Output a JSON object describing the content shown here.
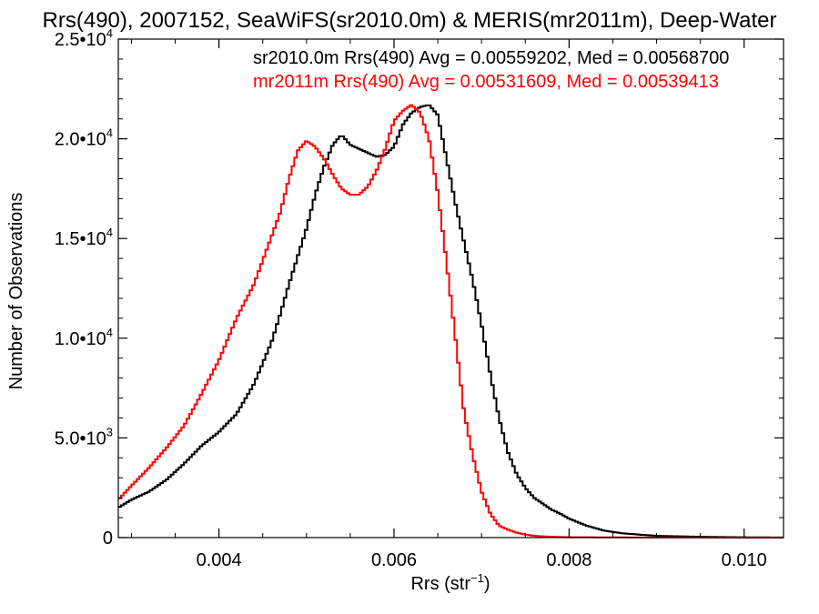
{
  "chart_data": {
    "type": "line",
    "title": "Rrs(490), 2007152, SeaWiFS(sr2010.0m) & MERIS(mr2011m), Deep-Water",
    "xlabel": "Rrs (str",
    "xlabel_sup": "−1",
    "xlabel_close": ")",
    "ylabel": "Number of Observations",
    "xlim": [
      0.00285,
      0.01045
    ],
    "ylim": [
      0,
      25000
    ],
    "x_ticks": [
      {
        "value": 0.004,
        "label": "0.004"
      },
      {
        "value": 0.006,
        "label": "0.006"
      },
      {
        "value": 0.008,
        "label": "0.008"
      },
      {
        "value": 0.01,
        "label": "0.010"
      }
    ],
    "y_ticks": [
      {
        "value": 0,
        "base": "0",
        "exp": ""
      },
      {
        "value": 5000,
        "base": "5.0•10",
        "exp": "3"
      },
      {
        "value": 10000,
        "base": "1.0•10",
        "exp": "4"
      },
      {
        "value": 15000,
        "base": "1.5•10",
        "exp": "4"
      },
      {
        "value": 20000,
        "base": "2.0•10",
        "exp": "4"
      },
      {
        "value": 25000,
        "base": "2.5•10",
        "exp": "4"
      }
    ],
    "grid": false,
    "legend_placement": "top-right",
    "series": [
      {
        "name": "sr2010.0m Rrs(490) Avg = 0.00559202, Med = 0.00568700",
        "color": "#000000",
        "x": [
          0.00285,
          0.003,
          0.0032,
          0.0034,
          0.0036,
          0.0038,
          0.004,
          0.0042,
          0.0044,
          0.0046,
          0.0047,
          0.0048,
          0.0049,
          0.005,
          0.0051,
          0.0052,
          0.0053,
          0.0054,
          0.0055,
          0.0056,
          0.0057,
          0.0058,
          0.0059,
          0.006,
          0.0061,
          0.0062,
          0.0063,
          0.0064,
          0.0065,
          0.0066,
          0.0067,
          0.0068,
          0.0069,
          0.007,
          0.0071,
          0.0072,
          0.0073,
          0.0074,
          0.0075,
          0.0076,
          0.0077,
          0.0078,
          0.0079,
          0.008,
          0.0082,
          0.0084,
          0.0086,
          0.0088,
          0.009,
          0.0095,
          0.01,
          0.01045
        ],
        "y": [
          1500,
          1900,
          2300,
          2900,
          3700,
          4600,
          5300,
          6200,
          7700,
          9800,
          11200,
          12700,
          14100,
          15500,
          17200,
          18600,
          19700,
          20200,
          19700,
          19500,
          19300,
          19100,
          19200,
          19600,
          20700,
          21300,
          21600,
          21700,
          21200,
          19000,
          16800,
          14800,
          12900,
          10700,
          8200,
          6000,
          4300,
          3200,
          2500,
          2000,
          1700,
          1400,
          1200,
          950,
          600,
          350,
          220,
          150,
          90,
          40,
          15,
          5
        ]
      },
      {
        "name": "mr2011m Rrs(490) Avg = 0.00531609, Med = 0.00539413",
        "color": "#ff0000",
        "x": [
          0.00285,
          0.003,
          0.0032,
          0.0034,
          0.0036,
          0.0038,
          0.004,
          0.0042,
          0.0044,
          0.0045,
          0.0046,
          0.0047,
          0.0048,
          0.0049,
          0.005,
          0.0051,
          0.0052,
          0.0053,
          0.0054,
          0.0055,
          0.0056,
          0.0057,
          0.0058,
          0.0059,
          0.006,
          0.0061,
          0.0062,
          0.0063,
          0.0064,
          0.0065,
          0.0066,
          0.0067,
          0.0068,
          0.0069,
          0.007,
          0.0071,
          0.0072,
          0.0073,
          0.0074,
          0.0075,
          0.0076,
          0.0077,
          0.0078,
          0.008,
          0.0085,
          0.009,
          0.0095,
          0.01045
        ],
        "y": [
          1900,
          2600,
          3500,
          4500,
          5600,
          7200,
          8900,
          11000,
          12700,
          13900,
          15100,
          16300,
          18000,
          19400,
          19900,
          19600,
          19000,
          18200,
          17500,
          17200,
          17200,
          17600,
          18400,
          19500,
          20900,
          21400,
          21700,
          21300,
          20000,
          17300,
          13800,
          10100,
          6300,
          4100,
          2300,
          1200,
          600,
          400,
          250,
          150,
          90,
          60,
          40,
          20,
          10,
          5,
          3,
          0
        ]
      }
    ]
  }
}
